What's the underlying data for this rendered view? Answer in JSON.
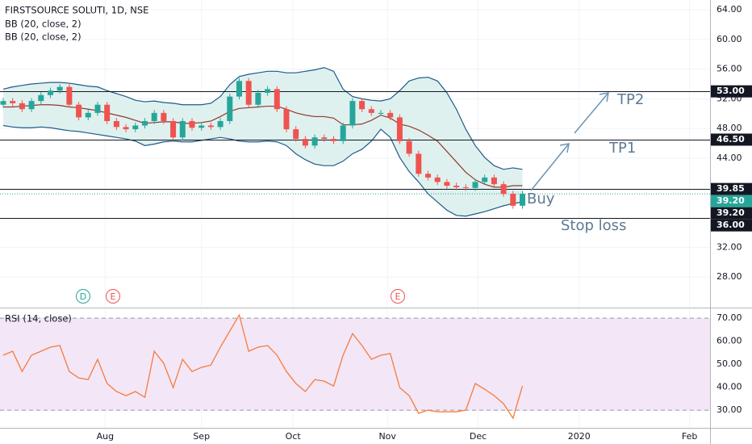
{
  "chart_data": [
    {
      "type": "candlestick",
      "title": "FIRSTSOURCE SOLUTI, 1D, NSE",
      "indicator_labels": [
        "BB (20, close, 2)",
        "BB (20, close, 2)"
      ],
      "categories": [
        null,
        null,
        null,
        null,
        null,
        null,
        null,
        null,
        null,
        null,
        null,
        null,
        null,
        null,
        null,
        null,
        null,
        null,
        null,
        null,
        null,
        null,
        null,
        null,
        null,
        null,
        null,
        null,
        null,
        null,
        null,
        null,
        null,
        null,
        null,
        null,
        null,
        null,
        null,
        null,
        null,
        null,
        null,
        null,
        null,
        null,
        null,
        null,
        null,
        null,
        null,
        null,
        null,
        null,
        null,
        null
      ],
      "open": [
        51.2,
        51.7,
        51.4,
        50.6,
        51.7,
        52.5,
        53.1,
        53.6,
        51.2,
        49.5,
        50.1,
        51.2,
        49.0,
        48.2,
        47.9,
        48.4,
        49.0,
        50.1,
        49.0,
        46.8,
        49.0,
        48.1,
        48.4,
        48.2,
        49.0,
        52.3,
        54.4,
        51.2,
        52.8,
        53.3,
        50.6,
        47.9,
        46.6,
        45.7,
        46.8,
        46.6,
        46.3,
        48.4,
        51.7,
        50.6,
        50.1,
        50.1,
        49.5,
        46.3,
        44.6,
        41.9,
        41.4,
        40.8,
        40.3,
        40.1,
        40.0,
        40.8,
        41.4,
        40.5,
        39.2,
        37.6
      ],
      "high": [
        52.1,
        52.1,
        51.8,
        52.1,
        52.9,
        53.5,
        54.0,
        54.0,
        51.6,
        50.5,
        51.6,
        51.6,
        49.4,
        48.6,
        48.8,
        49.4,
        50.5,
        50.5,
        49.4,
        49.4,
        49.4,
        48.8,
        48.8,
        49.4,
        52.7,
        54.8,
        54.8,
        53.2,
        53.7,
        53.7,
        51.0,
        48.3,
        47.0,
        47.2,
        47.2,
        47.0,
        48.8,
        52.1,
        52.1,
        51.0,
        50.5,
        50.5,
        49.9,
        46.7,
        45.0,
        42.3,
        41.8,
        41.2,
        40.7,
        40.5,
        41.2,
        41.8,
        41.8,
        40.9,
        39.6,
        39.6
      ],
      "low": [
        50.8,
        51.0,
        50.2,
        50.2,
        51.3,
        52.1,
        52.7,
        50.8,
        49.1,
        49.1,
        49.7,
        48.6,
        47.8,
        47.5,
        47.5,
        48.0,
        48.6,
        48.6,
        46.4,
        46.4,
        47.7,
        47.7,
        47.8,
        47.8,
        48.6,
        51.9,
        50.8,
        50.8,
        52.4,
        50.2,
        47.5,
        46.2,
        45.3,
        45.3,
        46.2,
        45.9,
        45.9,
        48.0,
        50.2,
        49.7,
        49.7,
        49.1,
        45.9,
        44.2,
        41.5,
        41.0,
        40.4,
        39.9,
        39.7,
        39.6,
        39.6,
        40.4,
        40.1,
        38.8,
        37.2,
        37.2
      ],
      "close": [
        51.7,
        51.4,
        50.6,
        51.7,
        52.5,
        53.1,
        53.6,
        51.2,
        49.5,
        50.1,
        51.2,
        49.0,
        48.2,
        47.9,
        48.4,
        49.0,
        50.1,
        49.0,
        46.8,
        49.0,
        48.1,
        48.4,
        48.2,
        49.0,
        52.3,
        54.4,
        51.2,
        52.8,
        53.3,
        50.6,
        47.9,
        46.6,
        45.7,
        46.8,
        46.6,
        46.3,
        48.4,
        51.7,
        50.6,
        50.1,
        50.1,
        49.5,
        46.3,
        44.6,
        41.9,
        41.4,
        40.8,
        40.3,
        40.1,
        40.0,
        40.8,
        41.4,
        40.5,
        39.2,
        37.6,
        39.2
      ],
      "up_color": "#26a69a",
      "down_color": "#ef5350",
      "bands": {
        "upper": [
          53.3,
          53.6,
          53.8,
          54.0,
          54.1,
          54.2,
          54.2,
          54.1,
          53.9,
          53.7,
          53.6,
          53.1,
          52.7,
          52.3,
          51.8,
          51.6,
          51.7,
          51.5,
          51.4,
          51.2,
          51.2,
          51.2,
          51.4,
          52.3,
          53.9,
          55.0,
          55.3,
          55.5,
          55.7,
          55.7,
          55.5,
          55.5,
          55.7,
          55.9,
          56.2,
          55.7,
          53.3,
          52.3,
          52.0,
          51.8,
          51.7,
          52.0,
          53.1,
          54.4,
          54.8,
          54.9,
          54.4,
          52.8,
          50.6,
          47.9,
          45.7,
          44.1,
          43.0,
          42.5,
          42.7,
          42.5
        ],
        "middle": [
          50.9,
          50.9,
          51.0,
          51.1,
          51.2,
          51.2,
          51.1,
          50.9,
          50.8,
          50.6,
          50.4,
          50.1,
          49.8,
          49.5,
          49.1,
          48.7,
          48.8,
          48.9,
          48.9,
          48.7,
          48.7,
          48.8,
          49.0,
          49.6,
          50.3,
          50.7,
          50.8,
          50.9,
          51.0,
          51.0,
          50.6,
          50.1,
          49.8,
          49.6,
          49.6,
          49.4,
          48.5,
          48.5,
          48.6,
          49.1,
          49.8,
          49.4,
          48.6,
          48.3,
          47.8,
          47.1,
          46.3,
          44.9,
          43.5,
          42.1,
          41.1,
          40.5,
          40.1,
          40.1,
          40.3,
          40.3
        ],
        "lower": [
          48.4,
          48.2,
          48.1,
          48.1,
          48.2,
          48.1,
          47.9,
          47.7,
          47.6,
          47.4,
          47.2,
          47.0,
          46.8,
          46.6,
          46.3,
          45.7,
          45.9,
          46.2,
          46.3,
          46.2,
          46.2,
          46.4,
          46.6,
          46.8,
          46.6,
          46.3,
          46.2,
          46.2,
          46.3,
          46.2,
          45.7,
          44.6,
          43.8,
          43.2,
          43.0,
          43.0,
          43.6,
          44.6,
          45.2,
          46.3,
          47.9,
          46.8,
          44.1,
          42.2,
          40.8,
          39.2,
          38.1,
          37.0,
          36.3,
          36.2,
          36.5,
          36.8,
          37.2,
          37.6,
          37.9,
          38.1
        ],
        "edge_color": "#1e5a8a",
        "middle_color": "#8d3b2e",
        "fill": "#dff1ef"
      },
      "levels": [
        {
          "value": 53,
          "label": "53.00"
        },
        {
          "value": 46.5,
          "label": "46.50"
        },
        {
          "value": 39.85,
          "label": "39.85"
        },
        {
          "value": 36,
          "label": "36.00"
        }
      ],
      "price_labels": [
        {
          "value": 39.2,
          "label": "39.20",
          "color": "#26a69a"
        },
        {
          "value": 39.2,
          "label": "39.20",
          "color": "#131722"
        }
      ],
      "annotations": [
        "TP2",
        "TP1",
        "Buy",
        "Stop loss"
      ],
      "events": [
        "D",
        "E",
        "E"
      ],
      "xlim": [
        -0.34,
        74.87
      ],
      "ylim": [
        24,
        65.3
      ],
      "yticks": [
        {
          "value": 64,
          "label": "64.00"
        },
        {
          "value": 60,
          "label": "60.00"
        },
        {
          "value": 56,
          "label": "56.00"
        },
        {
          "value": 52,
          "label": "52.00"
        },
        {
          "value": 48,
          "label": "48.00"
        },
        {
          "value": 44,
          "label": "44.00"
        },
        {
          "value": 32,
          "label": "32.00"
        },
        {
          "value": 28,
          "label": "28.00"
        }
      ],
      "grid": true
    },
    {
      "type": "line",
      "title": "RSI (14, close)",
      "categories": [
        null,
        null,
        null,
        null,
        null,
        null,
        null,
        null,
        null,
        null,
        null,
        null,
        null,
        null,
        null,
        null,
        null,
        null,
        null,
        null,
        null,
        null,
        null,
        null,
        null,
        null,
        null,
        null,
        null,
        null,
        null,
        null,
        null,
        null,
        null,
        null,
        null,
        null,
        null,
        null,
        null,
        null,
        null,
        null,
        null,
        null,
        null,
        null,
        null,
        null,
        null,
        null,
        null,
        null,
        null,
        null
      ],
      "values": [
        53.9,
        55.6,
        46.8,
        53.9,
        55.6,
        57.4,
        58.1,
        46.8,
        44.0,
        43.3,
        52.1,
        41.6,
        38.1,
        36.3,
        38.1,
        35.6,
        55.6,
        50.4,
        39.8,
        52.1,
        46.8,
        48.6,
        49.6,
        57.4,
        64.4,
        71.4,
        55.6,
        57.4,
        58.1,
        53.9,
        46.8,
        41.6,
        38.1,
        43.3,
        42.6,
        40.5,
        53.9,
        63.3,
        58.1,
        52.1,
        53.9,
        54.6,
        39.8,
        36.3,
        28.6,
        30.0,
        29.3,
        29.3,
        29.3,
        30.0,
        41.6,
        39.1,
        36.3,
        32.8,
        26.5,
        40.5
      ],
      "color": "#f57c3b",
      "band": [
        30,
        70
      ],
      "band_color": "#f3e6f7",
      "xlim": [
        -0.34,
        74.87
      ],
      "ylim": [
        22.3,
        73.9
      ],
      "yticks": [
        {
          "value": 70,
          "label": "70.00"
        },
        {
          "value": 60,
          "label": "60.00"
        },
        {
          "value": 50,
          "label": "50.00"
        },
        {
          "value": 40,
          "label": "40.00"
        },
        {
          "value": 30,
          "label": "30.00"
        }
      ],
      "xticks": [
        {
          "value": 10.8,
          "label": "Aug"
        },
        {
          "value": 21.0,
          "label": "Sep"
        },
        {
          "value": 30.7,
          "label": "Oct"
        },
        {
          "value": 40.7,
          "label": "Nov"
        },
        {
          "value": 50.3,
          "label": "Dec"
        },
        {
          "value": 61.0,
          "label": "2020"
        },
        {
          "value": 72.7,
          "label": "Feb"
        }
      ],
      "grid": true
    }
  ]
}
